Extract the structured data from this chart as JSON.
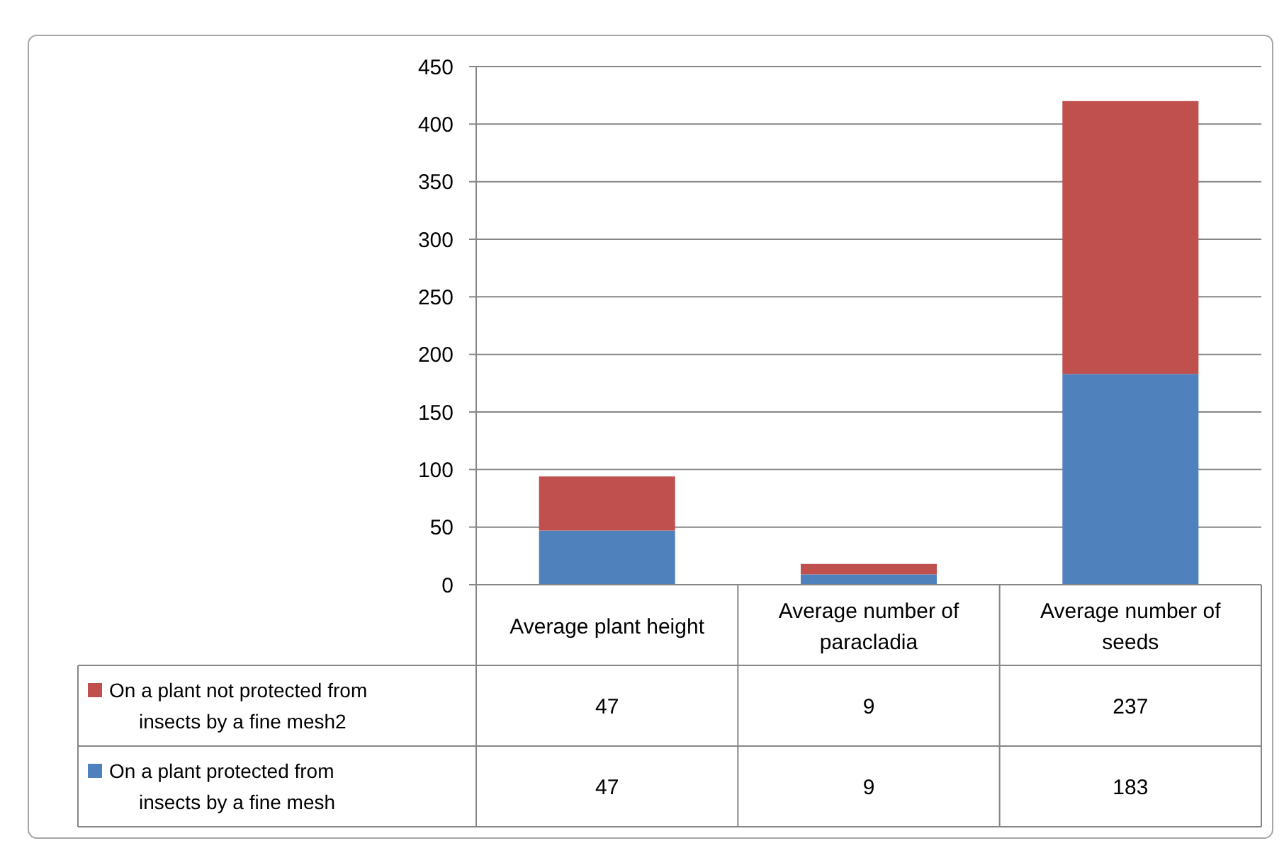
{
  "chart_data": {
    "type": "bar",
    "stacked": true,
    "categories": [
      "Average plant height",
      "Average number of paracladia",
      "Average number of seeds"
    ],
    "series": [
      {
        "name": "On a plant protected from insects by a fine mesh",
        "color": "#4f81bd",
        "values": [
          47,
          9,
          183
        ]
      },
      {
        "name": "On a plant not protected from insects by a fine mesh2",
        "color": "#c0504d",
        "values": [
          47,
          9,
          237
        ]
      }
    ],
    "ylim": [
      0,
      450
    ],
    "yticks": [
      0,
      50,
      100,
      150,
      200,
      250,
      300,
      350,
      400,
      450
    ],
    "grid": "y",
    "data_labels": true,
    "legend": "bottom"
  }
}
